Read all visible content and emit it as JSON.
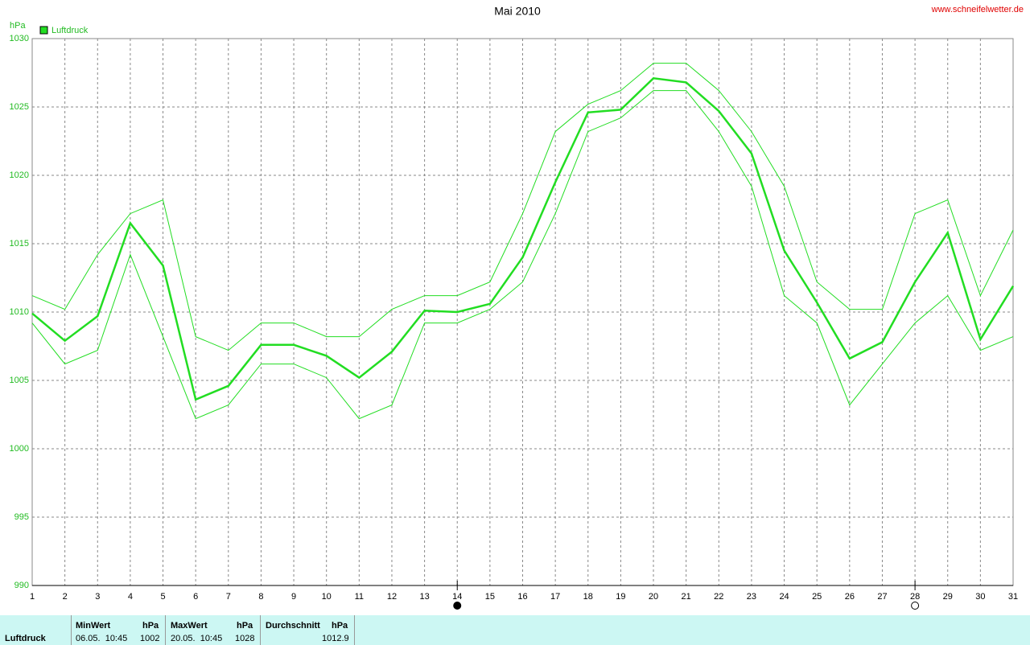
{
  "chart_data": {
    "type": "line",
    "title": "Mai 2010",
    "source": "www.schneifelwetter.de",
    "y_unit": "hPa",
    "x": [
      1,
      2,
      3,
      4,
      5,
      6,
      7,
      8,
      9,
      10,
      11,
      12,
      13,
      14,
      15,
      16,
      17,
      18,
      19,
      20,
      21,
      22,
      23,
      24,
      25,
      26,
      27,
      28,
      29,
      30,
      31
    ],
    "series": [
      {
        "name": "Luftdruck",
        "color": "#22dd22",
        "values": [
          1009.9,
          1007.9,
          1009.7,
          1016.5,
          1013.4,
          1003.6,
          1004.6,
          1007.6,
          1007.6,
          1006.8,
          1005.2,
          1007.1,
          1010.1,
          1010.0,
          1010.6,
          1014.0,
          1019.5,
          1024.6,
          1024.8,
          1027.1,
          1026.8,
          1024.7,
          1021.6,
          1014.5,
          1010.7,
          1006.6,
          1007.8,
          1012.2,
          1015.8,
          1008.0,
          1011.9
        ]
      },
      {
        "color": "#22dd22",
        "values": [
          1011.2,
          1010.2,
          1014.2,
          1017.2,
          1018.2,
          1008.2,
          1007.2,
          1009.2,
          1009.2,
          1008.2,
          1008.2,
          1010.2,
          1011.2,
          1011.2,
          1012.2,
          1017.2,
          1023.2,
          1025.2,
          1026.2,
          1028.2,
          1028.2,
          1026.2,
          1023.2,
          1019.2,
          1012.2,
          1010.2,
          1010.2,
          1017.2,
          1018.2,
          1011.2,
          1016.0
        ]
      },
      {
        "color": "#22dd22",
        "values": [
          1009.2,
          1006.2,
          1007.2,
          1014.2,
          1008.2,
          1002.2,
          1003.2,
          1006.2,
          1006.2,
          1005.2,
          1002.2,
          1003.2,
          1009.2,
          1009.2,
          1010.2,
          1012.2,
          1017.2,
          1023.2,
          1024.2,
          1026.2,
          1026.2,
          1023.2,
          1019.2,
          1011.2,
          1009.2,
          1003.2,
          1006.2,
          1009.2,
          1011.2,
          1007.2,
          1008.2
        ]
      }
    ],
    "xlim": [
      1,
      31
    ],
    "xticks": [
      1,
      2,
      3,
      4,
      5,
      6,
      7,
      8,
      9,
      10,
      11,
      12,
      13,
      14,
      15,
      16,
      17,
      18,
      19,
      20,
      21,
      22,
      23,
      24,
      25,
      26,
      27,
      28,
      29,
      30,
      31
    ],
    "ylim": [
      990,
      1030
    ],
    "yticks": [
      990,
      995,
      1000,
      1005,
      1010,
      1015,
      1020,
      1025,
      1030
    ],
    "grid": true,
    "markers": [
      {
        "x": 14,
        "filled": true
      },
      {
        "x": 28,
        "filled": false
      }
    ]
  },
  "footer": {
    "label": "Luftdruck",
    "columns": [
      {
        "header": "MinWert",
        "unit": "hPa",
        "time": "06.05.  10:45",
        "value": "1002"
      },
      {
        "header": "MaxWert",
        "unit": "hPa",
        "time": "20.05.  10:45",
        "value": "1028"
      },
      {
        "header": "Durchschnitt",
        "unit": "hPa",
        "value": "1012.9"
      }
    ]
  }
}
